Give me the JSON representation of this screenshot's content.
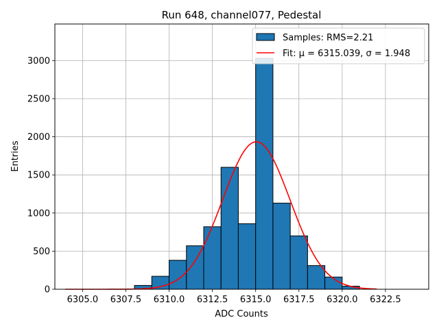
{
  "chart_data": {
    "type": "bar",
    "title": "Run 648, channel077, Pedestal",
    "xlabel": "ADC Counts",
    "ylabel": "Entries",
    "xlim": [
      6303.4,
      6325.0
    ],
    "ylim": [
      0,
      3480
    ],
    "x_ticks": [
      6305.0,
      6307.5,
      6310.0,
      6312.5,
      6315.0,
      6317.5,
      6320.0,
      6322.5
    ],
    "x_tick_labels": [
      "6305.0",
      "6307.5",
      "6310.0",
      "6312.5",
      "6315.0",
      "6317.5",
      "6320.0",
      "6322.5"
    ],
    "y_ticks": [
      0,
      500,
      1000,
      1500,
      2000,
      2500,
      3000
    ],
    "y_tick_labels": [
      "0",
      "500",
      "1000",
      "1500",
      "2000",
      "2500",
      "3000"
    ],
    "grid": true,
    "legend_position": "top-right",
    "colors": {
      "bar_fill": "#1f77b4",
      "bar_edge": "#000000",
      "fit_line": "#ff0000",
      "grid": "#b0b0b0"
    },
    "histogram": {
      "name": "Samples: RMS=2.21",
      "bin_edges": [
        6308.0,
        6309.0,
        6310.0,
        6311.0,
        6312.0,
        6313.0,
        6314.0,
        6315.0,
        6316.0,
        6317.0,
        6318.0,
        6319.0,
        6320.0,
        6321.0
      ],
      "counts": [
        50,
        170,
        380,
        570,
        820,
        1600,
        860,
        3030,
        1130,
        700,
        310,
        160,
        40
      ]
    },
    "fit": {
      "name": "Fit: μ = 6315.039, σ = 1.948",
      "mu": 6315.039,
      "sigma": 1.948,
      "amplitude": 1935,
      "x_range": [
        6304.0,
        6322.0
      ]
    }
  }
}
